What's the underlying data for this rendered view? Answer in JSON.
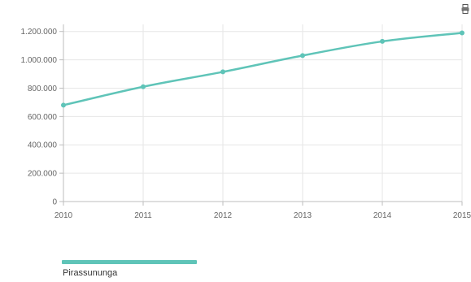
{
  "chart_data": {
    "type": "line",
    "title": "",
    "xlabel": "",
    "ylabel": "",
    "x": [
      "2010",
      "2011",
      "2012",
      "2013",
      "2014",
      "2015"
    ],
    "series": [
      {
        "name": "Pirassununga",
        "values": [
          680000,
          810000,
          915000,
          1030000,
          1130000,
          1190000
        ],
        "color": "#5fc4b8"
      }
    ],
    "yticks": [
      0,
      200000,
      400000,
      600000,
      800000,
      1000000,
      1200000
    ],
    "ytick_labels": [
      "0",
      "200.000",
      "400.000",
      "600.000",
      "800.000",
      "1.000.000",
      "1.200.000"
    ],
    "ylim": [
      0,
      1250000
    ],
    "grid": true,
    "legend_position": "bottom-left"
  },
  "legend": {
    "label": "Pirassununga"
  },
  "toolbar": {
    "icon": "print-icon"
  }
}
